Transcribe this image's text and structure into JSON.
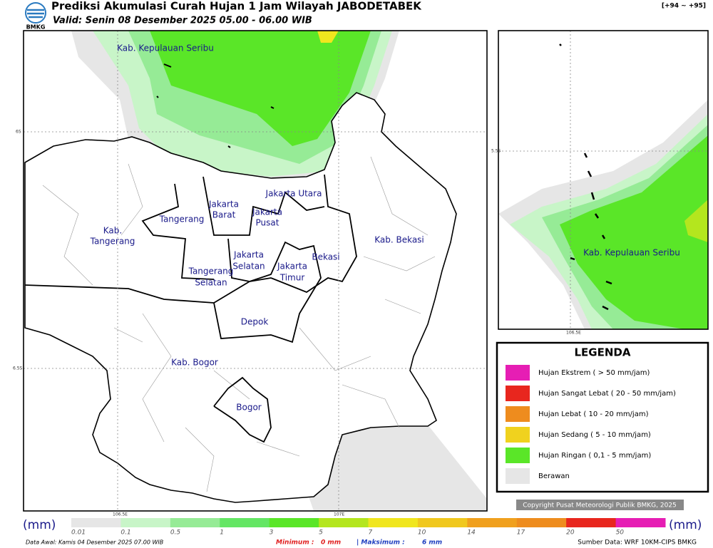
{
  "header": {
    "logo": "BMKG",
    "title": "Prediksi Akumulasi Curah Hujan 1 Jam Wilayah JABODETABEK",
    "subtitle": "Valid: Senin 08 Desember 2025 05.00 - 06.00 WIB",
    "range": "[+94 ~ +95]"
  },
  "map": {
    "labels": [
      [
        "Kab. Kepulauan Seribu"
      ],
      [
        "Jakarta Utara"
      ],
      [
        "Jakarta",
        "Barat"
      ],
      [
        "Jakarta",
        "Pusat"
      ],
      [
        "Tangerang"
      ],
      [
        "Kab.",
        "Tangerang"
      ],
      [
        "Kab. Bekasi"
      ],
      [
        "Jakarta",
        "Selatan"
      ],
      [
        "Jakarta",
        "Timur"
      ],
      [
        "Bekasi"
      ],
      [
        "Tangerang",
        "Selatan"
      ],
      [
        "Depok"
      ],
      [
        "Kab. Bogor"
      ],
      [
        "Bogor"
      ]
    ],
    "lat_labels": [
      "6S",
      "6.5S"
    ],
    "lon_labels": [
      "106.5E",
      "107E"
    ]
  },
  "inset": {
    "label": "Kab. Kepulauan Seribu",
    "lat_label": "5.5S",
    "lon_label": "106.5E"
  },
  "legend": {
    "title": "LEGENDA",
    "items": [
      {
        "label": "Hujan Ekstrem ( > 50 mm/jam)",
        "color": "#e61eb4"
      },
      {
        "label": "Hujan Sangat Lebat ( 20 - 50 mm/jam)",
        "color": "#e8261e"
      },
      {
        "label": "Hujan Lebat ( 10 - 20 mm/jam)",
        "color": "#ee8c1e"
      },
      {
        "label": "Hujan Sedang ( 5 - 10 mm/jam)",
        "color": "#f0d21e"
      },
      {
        "label": "Hujan Ringan ( 0,1 - 5 mm/jam)",
        "color": "#5ae628"
      },
      {
        "label": "Berawan",
        "color": "#e6e6e6"
      }
    ]
  },
  "copyright": "Copyright Pusat Meteorologi Publik BMKG, 2025",
  "colorbar": {
    "unit": "(mm)",
    "ticks": [
      0.01,
      0.1,
      0.5,
      1,
      3,
      5,
      7,
      10,
      14,
      17,
      20,
      50
    ],
    "colors": [
      "#e6e6e6",
      "#c8f5c8",
      "#96eb96",
      "#64e664",
      "#5ae628",
      "#b4e61e",
      "#f0e61e",
      "#f0c81e",
      "#f0a01e",
      "#ee8c1e",
      "#e8261e",
      "#e61eb4"
    ]
  },
  "footer": {
    "data_awal": "Data Awal: Kamis 04 Desember 2025 07.00 WIB",
    "min_label": "Minimum :",
    "min_value": "0 mm",
    "max_label": "| Maksimum :",
    "max_value": "6 mm",
    "source": "Sumber Data: WRF 10KM-CIPS BMKG"
  }
}
